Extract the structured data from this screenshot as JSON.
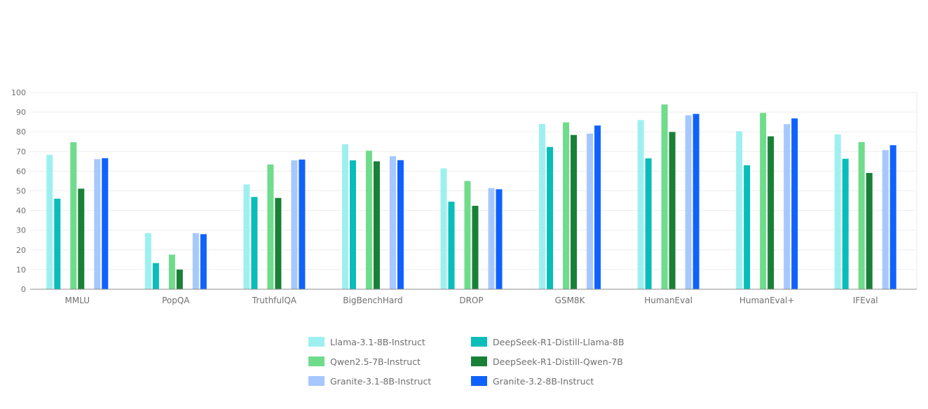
{
  "chart_data": {
    "type": "bar",
    "title": "",
    "xlabel": "",
    "ylabel": "",
    "ylim": [
      0,
      100
    ],
    "yticks": [
      0,
      10,
      20,
      30,
      40,
      50,
      60,
      70,
      80,
      90,
      100
    ],
    "grid": true,
    "legend_position": "bottom-center",
    "categories": [
      "MMLU",
      "PopQA",
      "TruthfulQA",
      "BigBenchHard",
      "DROP",
      "GSM8K",
      "HumanEval",
      "HumanEval+",
      "IFEval"
    ],
    "series": [
      {
        "name": "Llama-3.1-8B-Instruct",
        "color": "#9ef0f0",
        "values": [
          68.3,
          28.5,
          53.3,
          73.7,
          61.4,
          84.0,
          86.0,
          80.3,
          78.7
        ]
      },
      {
        "name": "DeepSeek-R1-Distill-Llama-8B",
        "color": "#08bdba",
        "values": [
          46.0,
          13.3,
          46.9,
          65.5,
          44.5,
          72.3,
          66.5,
          63.0,
          66.3
        ]
      },
      {
        "name": "Qwen2.5-7B-Instruct",
        "color": "#6fdc8c",
        "values": [
          74.7,
          17.6,
          63.4,
          70.4,
          55.0,
          84.8,
          93.9,
          89.6,
          74.8
        ]
      },
      {
        "name": "DeepSeek-R1-Distill-Qwen-7B",
        "color": "#198038",
        "values": [
          51.1,
          10.0,
          46.4,
          65.0,
          42.4,
          78.4,
          79.9,
          77.7,
          59.1
        ]
      },
      {
        "name": "Granite-3.1-8B-Instruct",
        "color": "#a6c8ff",
        "values": [
          66.1,
          28.5,
          65.5,
          67.6,
          51.4,
          79.1,
          88.4,
          83.9,
          70.7
        ]
      },
      {
        "name": "Granite-3.2-8B-Instruct",
        "color": "#0f62fe",
        "values": [
          66.6,
          28.0,
          65.9,
          65.6,
          50.8,
          83.2,
          89.1,
          86.8,
          73.2
        ]
      }
    ]
  }
}
